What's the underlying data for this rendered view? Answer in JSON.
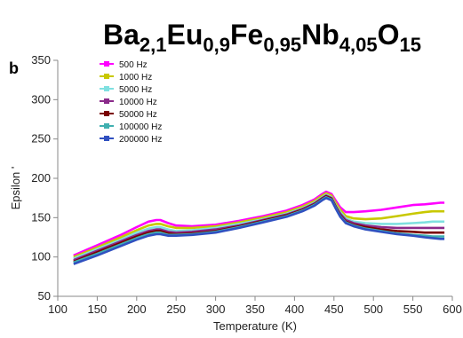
{
  "title_parts": [
    {
      "t": "Ba",
      "sub": false
    },
    {
      "t": "2,1",
      "sub": true
    },
    {
      "t": "Eu",
      "sub": false
    },
    {
      "t": "0,9",
      "sub": true
    },
    {
      "t": "Fe",
      "sub": false
    },
    {
      "t": "0,95",
      "sub": true
    },
    {
      "t": "Nb",
      "sub": false
    },
    {
      "t": "4,05",
      "sub": true
    },
    {
      "t": "O",
      "sub": false
    },
    {
      "t": "15",
      "sub": true
    }
  ],
  "panel_label": "b",
  "chart_data": {
    "type": "line",
    "xlabel": "Temperature (K)",
    "ylabel": "Epsilon '",
    "xlim": [
      100,
      600
    ],
    "ylim": [
      50,
      350
    ],
    "xticks": [
      100,
      150,
      200,
      250,
      300,
      350,
      400,
      450,
      500,
      550,
      600
    ],
    "yticks": [
      50,
      100,
      150,
      200,
      250,
      300,
      350
    ],
    "grid": false,
    "legend_position": "top-left",
    "series": [
      {
        "name": "500 Hz",
        "color": "#ff00ff",
        "x": [
          120,
          150,
          180,
          200,
          215,
          225,
          230,
          240,
          250,
          270,
          300,
          330,
          360,
          390,
          410,
          425,
          435,
          440,
          447,
          452,
          458,
          465,
          475,
          490,
          510,
          530,
          550,
          565,
          575,
          585,
          590
        ],
        "y": [
          102,
          115,
          128,
          138,
          145,
          147,
          147,
          143,
          140,
          139,
          141,
          146,
          152,
          159,
          166,
          173,
          180,
          183,
          180,
          172,
          163,
          157,
          157,
          158,
          160,
          163,
          166,
          167,
          168,
          169,
          169
        ]
      },
      {
        "name": "1000 Hz",
        "color": "#c8c800",
        "x": [
          120,
          150,
          180,
          200,
          215,
          225,
          230,
          240,
          250,
          270,
          300,
          330,
          360,
          390,
          410,
          425,
          435,
          440,
          447,
          452,
          458,
          465,
          475,
          490,
          510,
          530,
          550,
          565,
          575,
          585,
          590
        ],
        "y": [
          100,
          112,
          125,
          134,
          140,
          142,
          142,
          139,
          137,
          137,
          139,
          144,
          150,
          157,
          164,
          171,
          178,
          181,
          178,
          169,
          160,
          152,
          149,
          148,
          149,
          152,
          155,
          157,
          158,
          158,
          158
        ]
      },
      {
        "name": "5000 Hz",
        "color": "#7fe0e0",
        "x": [
          120,
          150,
          180,
          200,
          215,
          225,
          230,
          240,
          250,
          270,
          300,
          330,
          360,
          390,
          410,
          425,
          435,
          440,
          447,
          452,
          458,
          465,
          475,
          490,
          510,
          530,
          550,
          565,
          575,
          585,
          590
        ],
        "y": [
          98,
          110,
          122,
          131,
          136,
          138,
          138,
          135,
          133,
          134,
          137,
          142,
          148,
          155,
          162,
          169,
          176,
          179,
          176,
          166,
          157,
          149,
          145,
          143,
          142,
          142,
          143,
          144,
          145,
          145,
          145
        ]
      },
      {
        "name": "10000 Hz",
        "color": "#8a2a8a",
        "x": [
          120,
          150,
          180,
          200,
          215,
          225,
          230,
          240,
          250,
          270,
          300,
          330,
          360,
          390,
          410,
          425,
          435,
          440,
          447,
          452,
          458,
          465,
          475,
          490,
          510,
          530,
          550,
          565,
          575,
          585,
          590
        ],
        "y": [
          96,
          108,
          120,
          128,
          133,
          135,
          135,
          132,
          131,
          132,
          135,
          140,
          147,
          154,
          161,
          168,
          175,
          178,
          175,
          165,
          155,
          147,
          143,
          140,
          138,
          137,
          137,
          137,
          137,
          137,
          137
        ]
      },
      {
        "name": "50000 Hz",
        "color": "#7a0000",
        "x": [
          120,
          150,
          180,
          200,
          215,
          225,
          230,
          240,
          250,
          270,
          300,
          330,
          360,
          390,
          410,
          425,
          435,
          440,
          447,
          452,
          458,
          465,
          475,
          490,
          510,
          530,
          550,
          565,
          575,
          585,
          590
        ],
        "y": [
          94,
          106,
          118,
          126,
          131,
          133,
          133,
          130,
          129,
          130,
          133,
          139,
          146,
          153,
          160,
          167,
          174,
          177,
          174,
          164,
          153,
          145,
          141,
          138,
          135,
          133,
          132,
          131,
          131,
          131,
          131
        ]
      },
      {
        "name": "100000 Hz",
        "color": "#40b0b0",
        "x": [
          120,
          150,
          180,
          200,
          215,
          225,
          230,
          240,
          250,
          270,
          300,
          330,
          360,
          390,
          410,
          425,
          435,
          440,
          447,
          452,
          458,
          465,
          475,
          490,
          510,
          530,
          550,
          565,
          575,
          585,
          590
        ],
        "y": [
          93,
          104,
          116,
          124,
          129,
          131,
          131,
          128,
          128,
          129,
          132,
          138,
          145,
          152,
          159,
          166,
          173,
          176,
          173,
          163,
          152,
          144,
          140,
          136,
          133,
          130,
          128,
          127,
          126,
          126,
          126
        ]
      },
      {
        "name": "200000 Hz",
        "color": "#3050c0",
        "x": [
          120,
          150,
          180,
          200,
          215,
          225,
          230,
          240,
          250,
          270,
          300,
          330,
          360,
          390,
          410,
          425,
          435,
          440,
          447,
          452,
          458,
          465,
          475,
          490,
          510,
          530,
          550,
          565,
          575,
          585,
          590
        ],
        "y": [
          91,
          102,
          114,
          122,
          127,
          129,
          129,
          127,
          127,
          128,
          131,
          137,
          144,
          151,
          158,
          165,
          172,
          175,
          172,
          162,
          151,
          143,
          139,
          135,
          132,
          129,
          127,
          125,
          124,
          123,
          123
        ]
      }
    ]
  }
}
